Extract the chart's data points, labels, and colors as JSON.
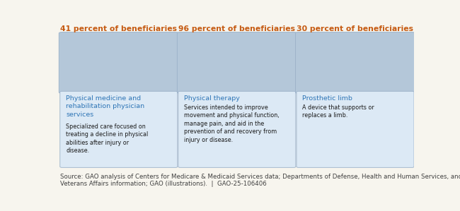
{
  "panels": [
    {
      "percent_text": "41 percent of beneficiaries",
      "title": "Physical medicine and\nrehabilitation physician\nservices",
      "description": "Specialized care focused on\ntreating a decline in physical\nabilities after injury or\ndisease."
    },
    {
      "percent_text": "96 percent of beneficiaries",
      "title": "Physical therapy",
      "description": "Services intended to improve\nmovement and physical function,\nmanage pain, and aid in the\nprevention of and recovery from\ninjury or disease."
    },
    {
      "percent_text": "30 percent of beneficiaries",
      "title": "Prosthetic limb",
      "description": "A device that supports or\nreplaces a limb."
    }
  ],
  "percent_color": "#c55a11",
  "title_color": "#2e75b6",
  "desc_color": "#1a1a1a",
  "source_text": "Source: GAO analysis of Centers for Medicare & Medicaid Services data; Departments of Defense, Health and Human Services, and\nVeterans Affairs information; GAO (illustrations).  |  GAO-25-106406",
  "source_color": "#404040",
  "source_fontsize": 6.2,
  "background_color": "#f7f5ee",
  "image_area_color": "#b4c7d9",
  "text_area_color": "#dce9f5",
  "panel_edge_color": "#9ab0c8"
}
